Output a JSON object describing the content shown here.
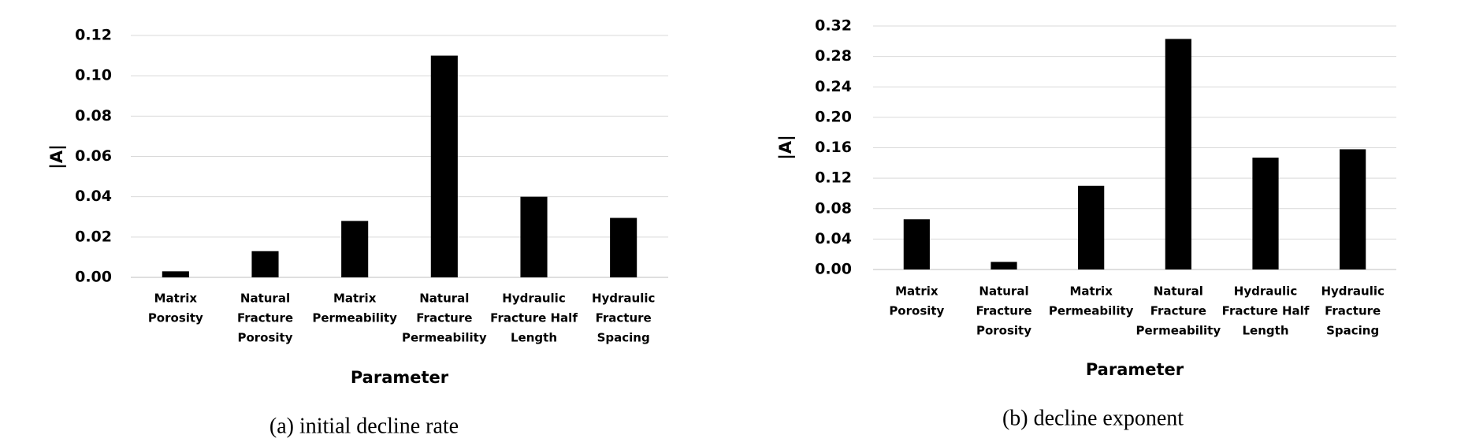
{
  "chart_data": [
    {
      "type": "bar",
      "caption": "(a) initial decline rate",
      "x_label": "Parameter",
      "y_label": "|A|",
      "categories": [
        [
          "Matrix",
          "Porosity"
        ],
        [
          "Natural",
          "Fracture",
          "Porosity"
        ],
        [
          "Matrix",
          "Permeability"
        ],
        [
          "Natural",
          "Fracture",
          "Permeability"
        ],
        [
          "Hydraulic",
          "Fracture Half",
          "Length"
        ],
        [
          "Hydraulic",
          "Fracture",
          "Spacing"
        ]
      ],
      "values": [
        0.003,
        0.013,
        0.028,
        0.11,
        0.04,
        0.0295
      ],
      "color": "#000000",
      "ylim": [
        0,
        0.12
      ],
      "yticks": [
        {
          "value": 0,
          "label": "0.00"
        },
        {
          "value": 0.02,
          "label": "0.02"
        },
        {
          "value": 0.04,
          "label": "0.04"
        },
        {
          "value": 0.06,
          "label": "0.06"
        },
        {
          "value": 0.08,
          "label": "0.08"
        },
        {
          "value": 0.1,
          "label": "0.10"
        },
        {
          "value": 0.12,
          "label": "0.12"
        }
      ],
      "grid": true
    },
    {
      "type": "bar",
      "caption": "(b) decline exponent",
      "x_label": "Parameter",
      "y_label": "|A|",
      "categories": [
        [
          "Matrix",
          "Porosity"
        ],
        [
          "Natural",
          "Fracture",
          "Porosity"
        ],
        [
          "Matrix",
          "Permeability"
        ],
        [
          "Natural",
          "Fracture",
          "Permeability"
        ],
        [
          "Hydraulic",
          "Fracture Half",
          "Length"
        ],
        [
          "Hydraulic",
          "Fracture",
          "Spacing"
        ]
      ],
      "values": [
        0.066,
        0.01,
        0.11,
        0.303,
        0.147,
        0.158
      ],
      "color": "#000000",
      "ylim": [
        0,
        0.32
      ],
      "yticks": [
        {
          "value": 0,
          "label": "0.00"
        },
        {
          "value": 0.04,
          "label": "0.04"
        },
        {
          "value": 0.08,
          "label": "0.08"
        },
        {
          "value": 0.12,
          "label": "0.12"
        },
        {
          "value": 0.16,
          "label": "0.16"
        },
        {
          "value": 0.2,
          "label": "0.20"
        },
        {
          "value": 0.24,
          "label": "0.24"
        },
        {
          "value": 0.28,
          "label": "0.28"
        },
        {
          "value": 0.32,
          "label": "0.32"
        }
      ],
      "grid": true
    }
  ]
}
